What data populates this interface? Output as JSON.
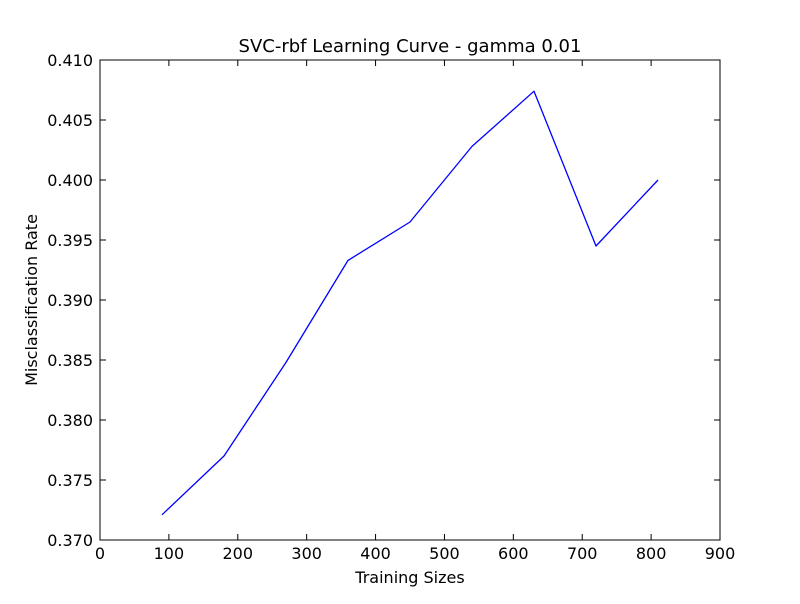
{
  "chart_data": {
    "type": "line",
    "title": "SVC-rbf Learning Curve - gamma 0.01",
    "xlabel": "Training Sizes",
    "ylabel": "Misclassification Rate",
    "xlim": [
      0,
      900
    ],
    "ylim": [
      0.37,
      0.41
    ],
    "xticks": [
      0,
      100,
      200,
      300,
      400,
      500,
      600,
      700,
      800,
      900
    ],
    "xtick_labels": [
      "0",
      "100",
      "200",
      "300",
      "400",
      "500",
      "600",
      "700",
      "800",
      "900"
    ],
    "yticks": [
      0.37,
      0.375,
      0.38,
      0.385,
      0.39,
      0.395,
      0.4,
      0.405,
      0.41
    ],
    "ytick_labels": [
      "0.370",
      "0.375",
      "0.380",
      "0.385",
      "0.390",
      "0.395",
      "0.400",
      "0.405",
      "0.410"
    ],
    "grid": false,
    "series": [
      {
        "color": "#0000ff",
        "x": [
          90,
          180,
          270,
          360,
          450,
          540,
          630,
          720,
          810
        ],
        "y": [
          0.3721,
          0.377,
          0.3848,
          0.3933,
          0.3965,
          0.4028,
          0.4074,
          0.3945,
          0.4
        ]
      }
    ]
  }
}
